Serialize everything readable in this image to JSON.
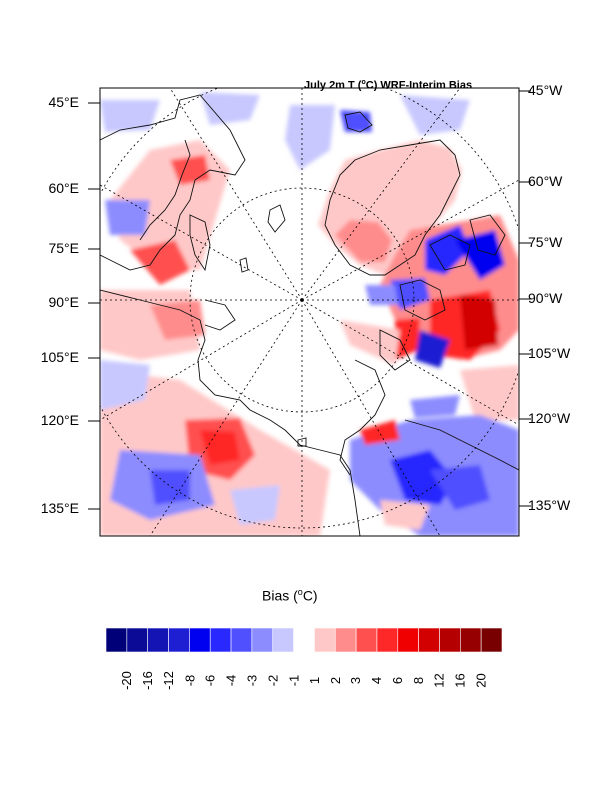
{
  "title": {
    "prefix": "July 2m T (",
    "degree": "o",
    "suffix": "C) WRF-Interim Bias"
  },
  "left_labels": [
    "45°E",
    "60°E",
    "75°E",
    "90°E",
    "105°E",
    "120°E",
    "135°E"
  ],
  "right_labels": [
    "45°W",
    "60°W",
    "75°W",
    "90°W",
    "105°W",
    "120°W",
    "135°W"
  ],
  "colorbar": {
    "title_prefix": "Bias (",
    "title_degree": "o",
    "title_suffix": "C)",
    "labels": [
      "-20",
      "-16",
      "-12",
      "-8",
      "-6",
      "-4",
      "-3",
      "-2",
      "-1",
      "1",
      "2",
      "3",
      "4",
      "6",
      "8",
      "12",
      "16",
      "20"
    ],
    "colors": [
      "#000078",
      "#0a0a96",
      "#1414b4",
      "#1e1ed2",
      "#0000f0",
      "#2828ff",
      "#5050ff",
      "#8c8cff",
      "#c8c8ff",
      "#ffffff",
      "#ffc8c8",
      "#ff8c8c",
      "#ff5050",
      "#ff2828",
      "#f00000",
      "#d20000",
      "#b40000",
      "#960000",
      "#780000"
    ]
  },
  "palette": {
    "frame": "#000000",
    "grid": "#000000",
    "coast": "#111111"
  }
}
